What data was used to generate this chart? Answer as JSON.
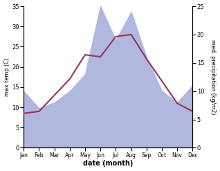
{
  "months": [
    "Jan",
    "Feb",
    "Mar",
    "Apr",
    "May",
    "Jun",
    "Jul",
    "Aug",
    "Sep",
    "Oct",
    "Nov",
    "Dec"
  ],
  "temperature": [
    8.5,
    9.0,
    13.0,
    17.0,
    23.0,
    22.5,
    27.5,
    28.0,
    22.0,
    16.5,
    11.0,
    9.0
  ],
  "precipitation": [
    10.0,
    7.0,
    8.0,
    10.0,
    13.0,
    25.0,
    19.0,
    24.0,
    16.0,
    10.0,
    8.0,
    11.0
  ],
  "temp_color": "#993355",
  "precip_fill_color": "#b0b8e0",
  "temp_ylim": [
    0,
    35
  ],
  "precip_ylim": [
    0,
    25
  ],
  "temp_yticks": [
    0,
    5,
    10,
    15,
    20,
    25,
    30,
    35
  ],
  "precip_yticks": [
    0,
    5,
    10,
    15,
    20,
    25
  ],
  "xlabel": "date (month)",
  "ylabel_left": "max temp (C)",
  "ylabel_right": "med. precipitation (kg/m2)",
  "bg_color": "#ffffff"
}
